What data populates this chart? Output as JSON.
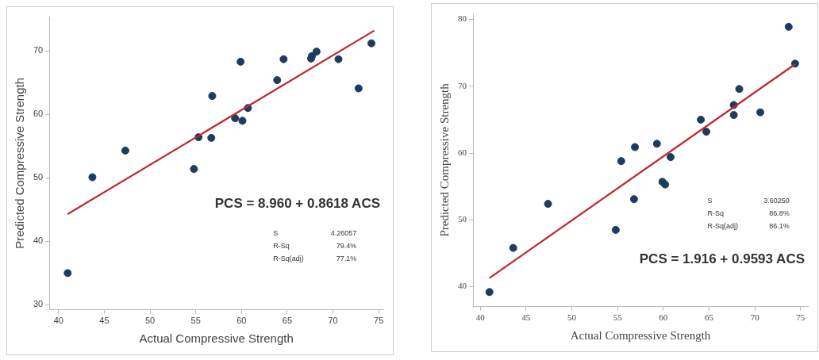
{
  "chart_data": [
    {
      "type": "scatter",
      "xlabel": "Actual Compressive Strength",
      "ylabel": "Predicted Compressive Strength",
      "xlim": [
        39,
        75.5
      ],
      "ylim": [
        29.2,
        75.4
      ],
      "xticks": [
        40,
        45,
        50,
        55,
        60,
        65,
        70,
        75
      ],
      "yticks": [
        30,
        40,
        50,
        60,
        70
      ],
      "grid": false,
      "legend": false,
      "annotations": [
        "PCS = 8.960 + 0.8618 ACS",
        "S",
        "4.26057",
        "R-Sq",
        "79.4%",
        "R-Sq(adj)",
        "77.1%"
      ],
      "series": [
        {
          "marker": "circle",
          "color": "#1d3c5e",
          "x": [
            41.0,
            43.7,
            47.3,
            54.8,
            55.3,
            56.7,
            56.8,
            59.3,
            60.1,
            59.9,
            60.7,
            63.9,
            64.6,
            67.6,
            67.7,
            68.2,
            70.6,
            72.8,
            74.2
          ],
          "values": [
            35.0,
            50.1,
            54.3,
            51.4,
            56.4,
            56.3,
            62.9,
            59.4,
            59.0,
            68.3,
            61.0,
            65.4,
            68.7,
            68.8,
            69.2,
            69.9,
            68.7,
            64.1,
            71.2
          ]
        },
        {
          "type": "line",
          "color": "#c0272d",
          "line_style": "solid",
          "marker": "none",
          "x": [
            41.0,
            74.5
          ],
          "values": [
            44.3,
            73.2
          ]
        }
      ]
    },
    {
      "type": "scatter",
      "xlabel": "Actual Compressive Strength",
      "ylabel": "Predicted Compressive Strength",
      "xlim": [
        39.2,
        75.8
      ],
      "ylim": [
        37,
        80.9
      ],
      "xticks": [
        40,
        45,
        50,
        55,
        60,
        65,
        70,
        75
      ],
      "yticks": [
        40,
        50,
        60,
        70,
        80
      ],
      "grid": false,
      "legend": false,
      "annotations": [
        "PCS = 1.916 + 0.9593 ACS",
        "S",
        "3.60250",
        "R-Sq",
        "86.8%",
        "R-Sq(adj)",
        "86.1%"
      ],
      "series": [
        {
          "marker": "circle",
          "color": "#1d3c5e",
          "x": [
            41.0,
            43.6,
            47.4,
            54.8,
            55.4,
            56.8,
            56.9,
            59.3,
            59.9,
            60.2,
            60.8,
            64.1,
            64.7,
            67.7,
            67.7,
            68.3,
            70.6,
            73.7,
            74.4
          ],
          "values": [
            39.2,
            45.8,
            52.4,
            48.5,
            58.8,
            53.1,
            60.9,
            61.4,
            55.7,
            55.3,
            59.4,
            65.0,
            63.2,
            67.2,
            65.7,
            69.6,
            66.1,
            78.9,
            73.4
          ]
        },
        {
          "type": "line",
          "color": "#c0272d",
          "line_style": "solid",
          "marker": "none",
          "x": [
            41.0,
            74.4
          ],
          "values": [
            41.3,
            73.3
          ]
        }
      ]
    }
  ]
}
